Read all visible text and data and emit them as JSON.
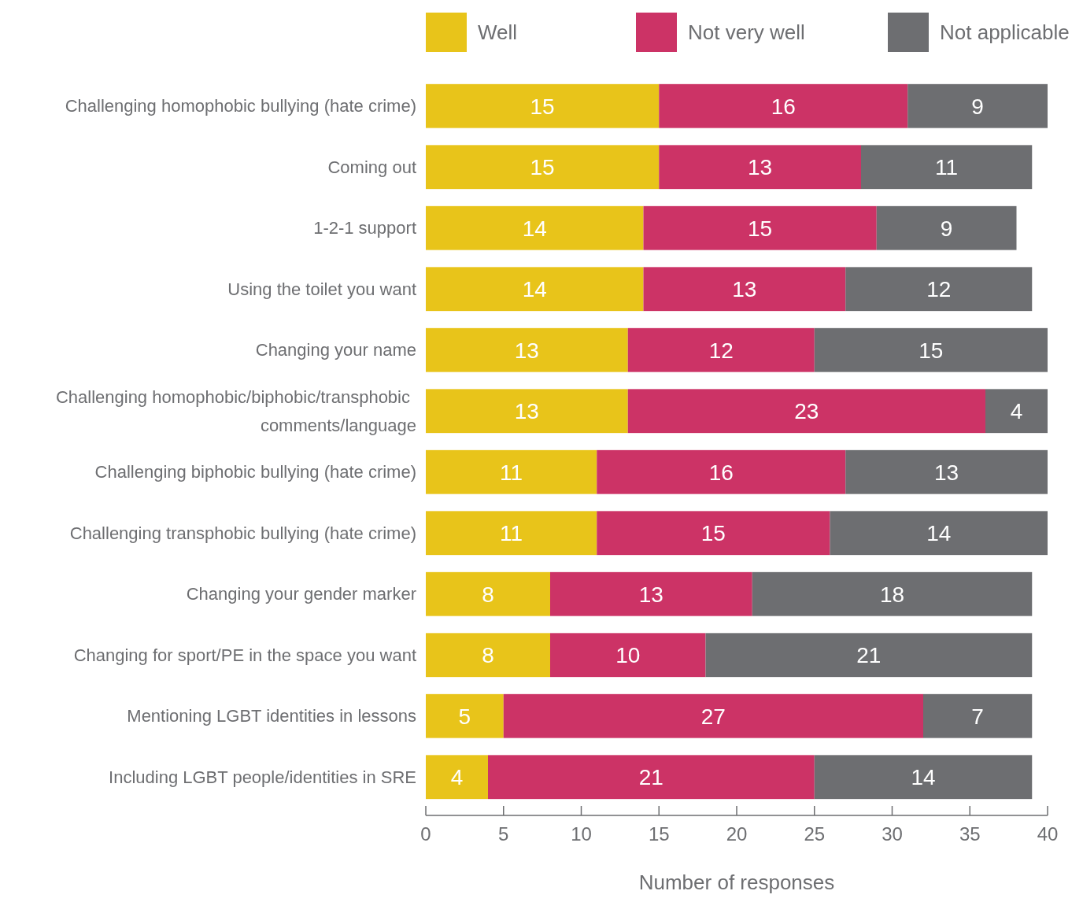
{
  "chart_data": {
    "type": "bar",
    "orientation": "horizontal",
    "stacked": true,
    "xlabel": "Number of responses",
    "categories": [
      "Challenging homophobic bullying (hate crime)",
      "Coming out",
      "1-2-1 support",
      "Using the toilet you want",
      "Changing your name",
      "Challenging homophobic/biphobic/transphobic comments/language",
      "Challenging biphobic bullying (hate crime)",
      "Challenging transphobic bullying (hate crime)",
      "Changing your gender marker",
      "Changing for sport/PE in the space you want",
      "Mentioning LGBT identities in lessons",
      "Including LGBT people/identities in SRE"
    ],
    "series": [
      {
        "name": "Well",
        "color": "#e8c41a",
        "values": [
          15,
          15,
          14,
          14,
          13,
          13,
          11,
          11,
          8,
          8,
          5,
          4
        ]
      },
      {
        "name": "Not very well",
        "color": "#cc3366",
        "values": [
          16,
          13,
          15,
          13,
          12,
          23,
          16,
          15,
          13,
          10,
          27,
          21
        ]
      },
      {
        "name": "Not applicable",
        "color": "#6d6e71",
        "values": [
          9,
          11,
          9,
          12,
          15,
          4,
          13,
          14,
          18,
          21,
          7,
          14
        ]
      }
    ],
    "xlim": [
      0,
      40
    ],
    "xticks": [
      0,
      5,
      10,
      15,
      20,
      25,
      30,
      35,
      40
    ],
    "data_labels": true,
    "legend": "top",
    "grid": false
  }
}
